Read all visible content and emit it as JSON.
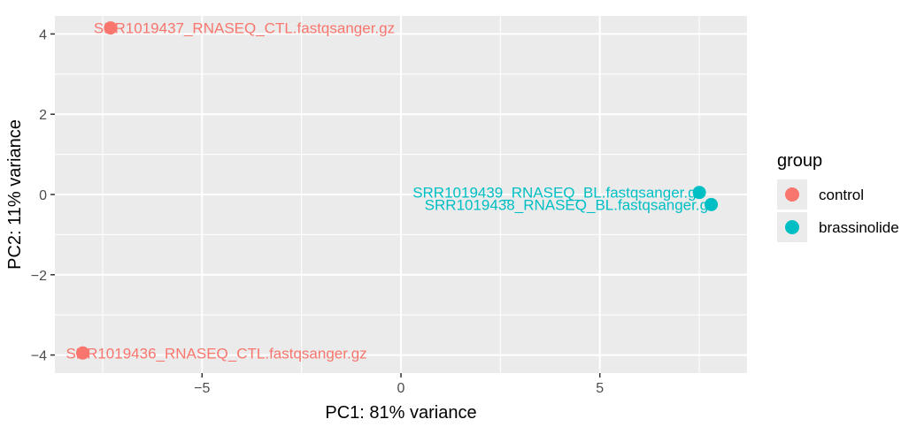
{
  "chart_data": {
    "type": "scatter",
    "title": "",
    "xlabel": "PC1: 81% variance",
    "ylabel": "PC2: 11% variance",
    "xlim": [
      -8.7,
      8.7
    ],
    "ylim": [
      -4.45,
      4.45
    ],
    "x_ticks": [
      -5,
      0,
      5
    ],
    "x_tick_labels": [
      "−5",
      "0",
      "5"
    ],
    "y_ticks": [
      -4,
      -2,
      0,
      2,
      4
    ],
    "y_tick_labels": [
      "−4",
      "−2",
      "0",
      "2",
      "4"
    ],
    "grid": true,
    "legend_position": "right",
    "legend": {
      "title": "group",
      "entries": [
        {
          "name": "control",
          "color": "#F8766D"
        },
        {
          "name": "brassinolide",
          "color": "#00BFC4"
        }
      ]
    },
    "points": [
      {
        "label": "SRR1019437_RNASEQ_CTL.fastqsanger.gz",
        "x": -7.3,
        "y": 4.15,
        "group": "control",
        "label_anchor": "start"
      },
      {
        "label": "SRR1019436_RNASEQ_CTL.fastqsanger.gz",
        "x": -8.0,
        "y": -3.95,
        "group": "control",
        "label_anchor": "start"
      },
      {
        "label": "SRR1019439_RNASEQ_BL.fastqsanger.gz",
        "x": 7.5,
        "y": 0.05,
        "group": "brassinolide",
        "label_anchor": "end"
      },
      {
        "label": "SRR1019438_RNASEQ_BL.fastqsanger.gz",
        "x": 7.8,
        "y": -0.25,
        "group": "brassinolide",
        "label_anchor": "end"
      }
    ],
    "colors": {
      "panel_background": "#EBEBEB",
      "grid_major": "#FFFFFF",
      "control": "#F8766D",
      "brassinolide": "#00BFC4"
    }
  }
}
